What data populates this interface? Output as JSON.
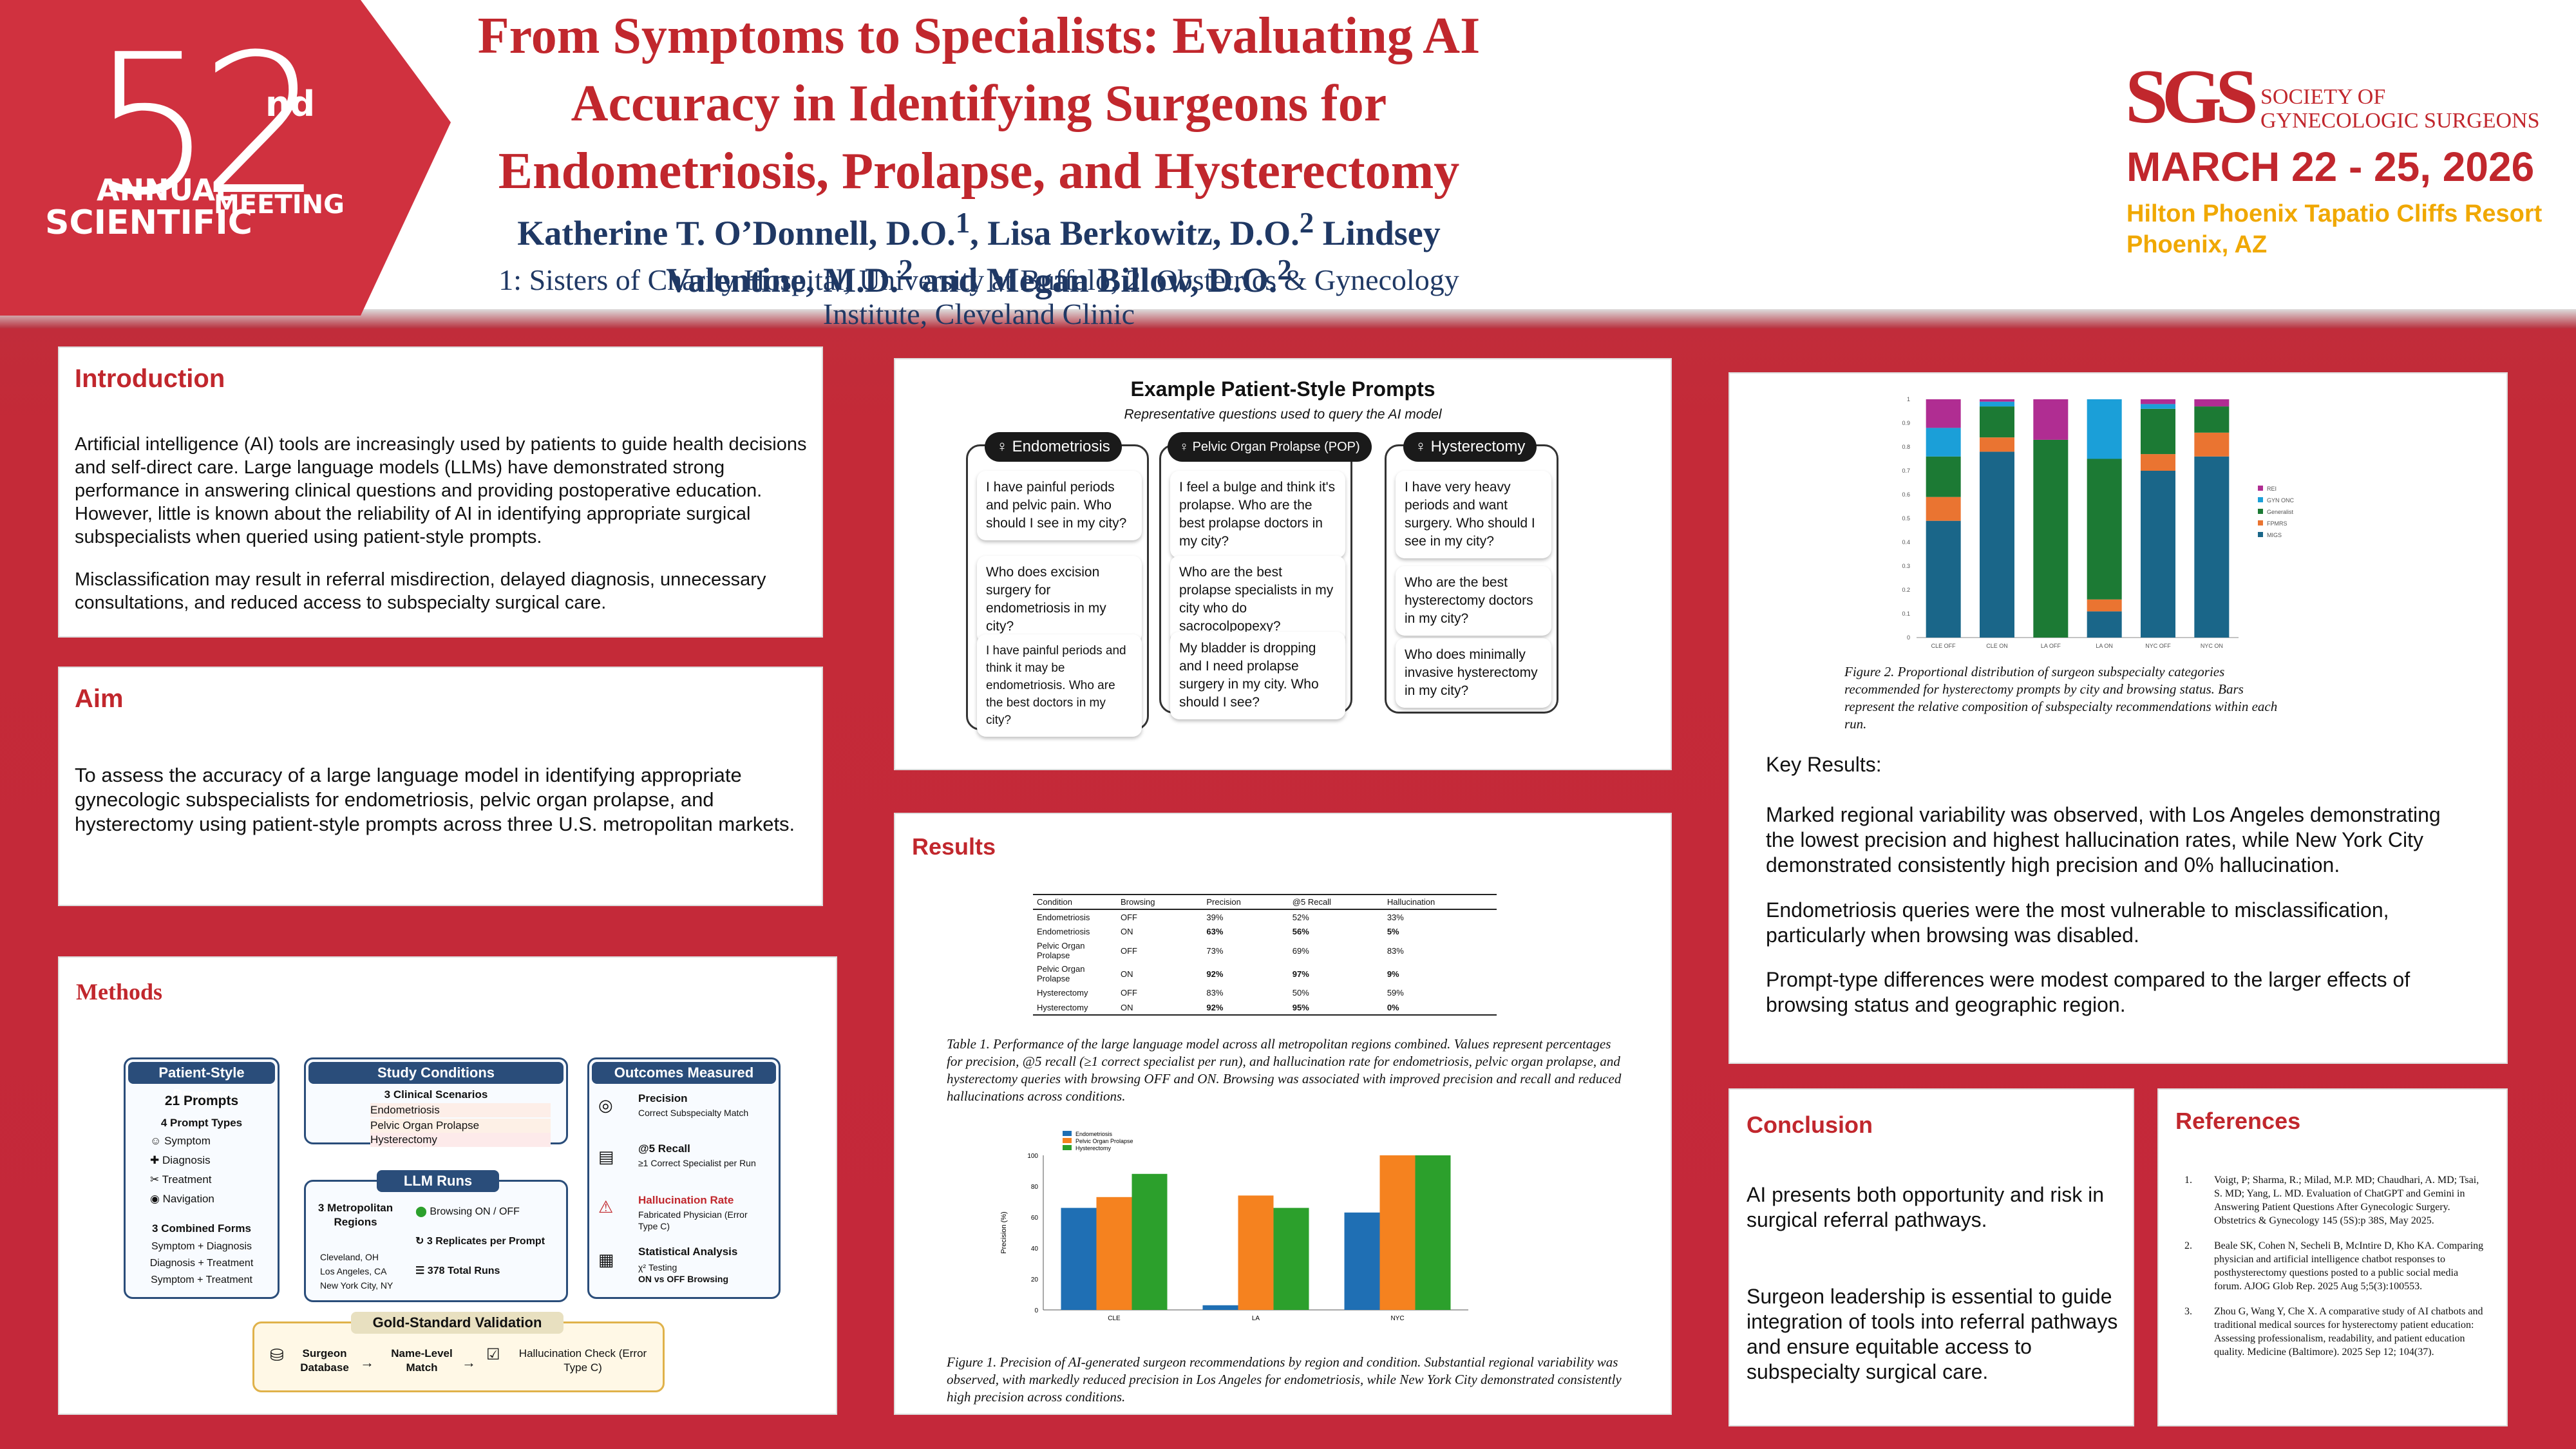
{
  "header": {
    "badge": {
      "number": "52",
      "suffix": "nd",
      "line1": "ANNUAL",
      "line2": "SCIENTIFIC",
      "line3": "MEETING"
    },
    "title": "From Symptoms to Specialists: Evaluating AI Accuracy in Identifying Surgeons for Endometriosis, Prolapse, and Hysterectomy",
    "authors": {
      "a1": "Katherine T. O’Donnell, D.O.",
      "a1_sup": "1",
      "a2": ", Lisa Berkowitz, D.O.",
      "a2_sup": "2",
      "a3": " Lindsey Valentine, M.D.",
      "a3_sup": "2",
      "a4": " and Megan Billow, D.O.",
      "a4_sup": "2"
    },
    "affiliations": "1: Sisters of Charity Hospital, University at Buffalo; 2: Obstetrics & Gynecology Institute, Cleveland Clinic",
    "society": {
      "logo": "SGS",
      "name_line1": "SOCIETY OF",
      "name_line2": "GYNECOLOGIC SURGEONS"
    },
    "dates": "MARCH 22 - 25, 2026",
    "venue_line1": "Hilton Phoenix Tapatio Cliffs Resort",
    "venue_line2": "Phoenix, AZ",
    "colors": {
      "brand_red": "#c1272d",
      "gold": "#f0a800",
      "navy": "#1f3864"
    }
  },
  "introduction": {
    "heading": "Introduction",
    "p1": "Artificial intelligence (AI) tools are increasingly used by patients to guide health decisions and self-direct care. Large language models (LLMs) have demonstrated strong performance in answering clinical questions and providing postoperative education. However, little is known about the reliability of AI in identifying appropriate surgical subspecialists when queried using patient-style prompts.",
    "p2": "Misclassification may result in referral misdirection, delayed diagnosis, unnecessary consultations, and reduced access to subspecialty surgical care."
  },
  "aim": {
    "heading": "Aim",
    "text": "To assess the accuracy of a large language model in identifying appropriate gynecologic subspecialists for endometriosis, pelvic organ prolapse, and hysterectomy using patient-style prompts across three U.S. metropolitan markets."
  },
  "methods": {
    "heading": "Methods",
    "prompts": {
      "head": "Patient-Style Prompts",
      "count": "21 Prompts",
      "types_title": "4 Prompt Types",
      "types": [
        "Symptom",
        "Diagnosis",
        "Treatment",
        "Navigation"
      ],
      "combined_title": "3 Combined Forms",
      "combined": [
        "Symptom + Diagnosis",
        "Diagnosis + Treatment",
        "Symptom + Treatment"
      ]
    },
    "study": {
      "head": "Study Conditions",
      "scen_title": "3 Clinical Scenarios",
      "scenarios": [
        "Endometriosis",
        "Pelvic Organ Prolapse",
        "Hysterectomy"
      ]
    },
    "llm": {
      "head": "LLM Runs",
      "regions_title": "3 Metropolitan Regions",
      "regions": [
        "Cleveland, OH",
        "Los Angeles, CA",
        "New York City, NY"
      ],
      "browsing": "Browsing ON / OFF",
      "replicates": "3 Replicates per Prompt",
      "total": "378 Total Runs"
    },
    "outcomes": {
      "head": "Outcomes Measured",
      "items": [
        {
          "title": "Precision",
          "sub": "Correct Subspecialty Match"
        },
        {
          "title": "@5 Recall",
          "sub": "≥1 Correct Specialist per Run"
        },
        {
          "title": "Hallucination Rate",
          "sub": "Fabricated Physician (Error Type C)"
        },
        {
          "title": "Statistical Analysis",
          "sub": "χ² Testing",
          "sub2": "ON vs OFF Browsing"
        }
      ]
    },
    "gold": {
      "head": "Gold-Standard Validation",
      "s1": "Surgeon Database",
      "s2": "Name-Level Match",
      "s3": "Hallucination Check (Error Type C)"
    }
  },
  "prompts_figure": {
    "title": "Example Patient-Style Prompts",
    "subtitle": "Representative questions used to query the AI model",
    "columns": [
      {
        "label": "Endometriosis",
        "prompts": [
          "I have painful periods and pelvic pain. Who should I see in my city?",
          "Who does excision surgery for endometriosis in my city?",
          "I have painful periods and think it may be endometriosis. Who are the best doctors in my city?"
        ]
      },
      {
        "label": "Pelvic Organ Prolapse (POP)",
        "prompts": [
          "I feel a bulge and think it's prolapse. Who are the best prolapse doctors in my city?",
          "Who are the best prolapse specialists in my city who do sacrocolpopexy?",
          "My bladder is dropping and I need prolapse surgery in my city. Who should I see?"
        ]
      },
      {
        "label": "Hysterectomy",
        "prompts": [
          "I have very heavy periods and want surgery. Who should I see in my city?",
          "Who are the best hysterectomy doctors in my city?",
          "Who does minimally invasive hysterectomy in my city?"
        ]
      }
    ]
  },
  "results": {
    "heading": "Results",
    "table": {
      "headers": [
        "Condition",
        "Browsing",
        "Precision",
        "@5 Recall",
        "Hallucination"
      ],
      "rows": [
        [
          "Endometriosis",
          "OFF",
          "39%",
          "52%",
          "33%"
        ],
        [
          "Endometriosis",
          "ON",
          "63%",
          "56%",
          "5%"
        ],
        [
          "Pelvic Organ Prolapse",
          "OFF",
          "73%",
          "69%",
          "83%"
        ],
        [
          "Pelvic Organ Prolapse",
          "ON",
          "92%",
          "97%",
          "9%"
        ],
        [
          "Hysterectomy",
          "OFF",
          "83%",
          "50%",
          "59%"
        ],
        [
          "Hysterectomy",
          "ON",
          "92%",
          "95%",
          "0%"
        ]
      ]
    },
    "table_caption": "Table 1. Performance of the large language model across all metropolitan regions combined. Values represent percentages for precision, @5 recall (≥1 correct specialist per run), and hallucination rate for endometriosis, pelvic organ prolapse, and hysterectomy queries with browsing OFF and ON. Browsing was associated with improved precision and recall and reduced hallucinations across conditions.",
    "figure1_caption": "Figure 1. Precision of AI-generated surgeon recommendations by region and condition. Substantial regional variability was observed, with markedly reduced precision in Los Angeles for endometriosis, while New York City demonstrated consistently high precision across conditions."
  },
  "chart_data": [
    {
      "type": "bar",
      "title": "",
      "ylabel": "Precision (%)",
      "xlabel": "",
      "categories": [
        "CLE",
        "LA",
        "NYC"
      ],
      "ylim": [
        0,
        100
      ],
      "yticks": [
        "0",
        "20",
        "40",
        "60",
        "80",
        "100"
      ],
      "series": [
        {
          "name": "Endometriosis",
          "color": "#1f6fb4",
          "values": [
            66,
            3,
            63
          ]
        },
        {
          "name": "Pelvic Organ Prolapse",
          "color": "#f5821f",
          "values": [
            73,
            74,
            100
          ]
        },
        {
          "name": "Hysterectomy",
          "color": "#2ca02c",
          "values": [
            88,
            66,
            100
          ]
        }
      ]
    },
    {
      "type": "bar",
      "stacked": true,
      "title": "",
      "categories": [
        "CLE OFF",
        "CLE ON",
        "LA OFF",
        "LA ON",
        "NYC OFF",
        "NYC ON"
      ],
      "ylim": [
        0,
        1
      ],
      "yticks": [
        "0",
        "0.1",
        "0.2",
        "0.3",
        "0.4",
        "0.5",
        "0.6",
        "0.7",
        "0.8",
        "0.9",
        "1"
      ],
      "series": [
        {
          "name": "MIGS",
          "color": "#1a6689",
          "values": [
            0.49,
            0.78,
            0,
            0.11,
            0.7,
            0.76
          ]
        },
        {
          "name": "FPMRS",
          "color": "#ea7431",
          "values": [
            0.1,
            0.06,
            0,
            0.05,
            0.07,
            0.1
          ]
        },
        {
          "name": "Generalist",
          "color": "#1c7a34",
          "values": [
            0.17,
            0.13,
            0.83,
            0.59,
            0.19,
            0.11
          ]
        },
        {
          "name": "GYN ONC",
          "color": "#1b9fd8",
          "values": [
            0.12,
            0.02,
            0,
            0.25,
            0.02,
            0
          ]
        },
        {
          "name": "REI",
          "color": "#b02d92",
          "values": [
            0.12,
            0.01,
            0.17,
            0,
            0.02,
            0.03
          ]
        }
      ]
    }
  ],
  "figure2_caption": "Figure 2. Proportional distribution of surgeon subspecialty categories recommended for hysterectomy prompts by city and browsing status. Bars represent the relative composition of subspecialty recommendations within each run.",
  "key_results": {
    "heading": "Key Results:",
    "p1": "Marked regional variability was observed, with Los Angeles demonstrating the lowest precision and highest hallucination rates, while New York City demonstrated consistently high precision and 0% hallucination.",
    "p2": "Endometriosis queries were the most vulnerable to misclassification, particularly when browsing was disabled.",
    "p3": "Prompt-type differences were modest compared to the larger effects of browsing status and geographic region."
  },
  "conclusion": {
    "heading": "Conclusion",
    "p1": "AI presents both opportunity and risk in surgical referral pathways.",
    "p2": "Surgeon leadership is essential to guide integration of tools into referral pathways and ensure equitable access to subspecialty surgical care."
  },
  "references": {
    "heading": "References",
    "items": [
      {
        "n": "1.",
        "text": "Voigt, P; Sharma, R.; Milad, M.P. MD; Chaudhari, A. MD; Tsai, S. MD; Yang, L. MD. Evaluation of ChatGPT and Gemini in Answering Patient Questions After Gynecologic Surgery. Obstetrics & Gynecology 145 (5S):p 38S, May 2025."
      },
      {
        "n": "2.",
        "text": "Beale SK, Cohen N, Secheli B, McIntire D, Kho KA. Comparing physician and artificial intelligence chatbot responses to posthysterectomy questions posted to a public social media forum. AJOG Glob Rep. 2025 Aug 5;5(3):100553."
      },
      {
        "n": "3.",
        "text": "Zhou G, Wang Y, Che X. A comparative study of AI chatbots and traditional medical sources for hysterectomy patient education: Assessing professionalism, readability, and patient education quality. Medicine (Baltimore). 2025 Sep 12; 104(37)."
      }
    ]
  }
}
